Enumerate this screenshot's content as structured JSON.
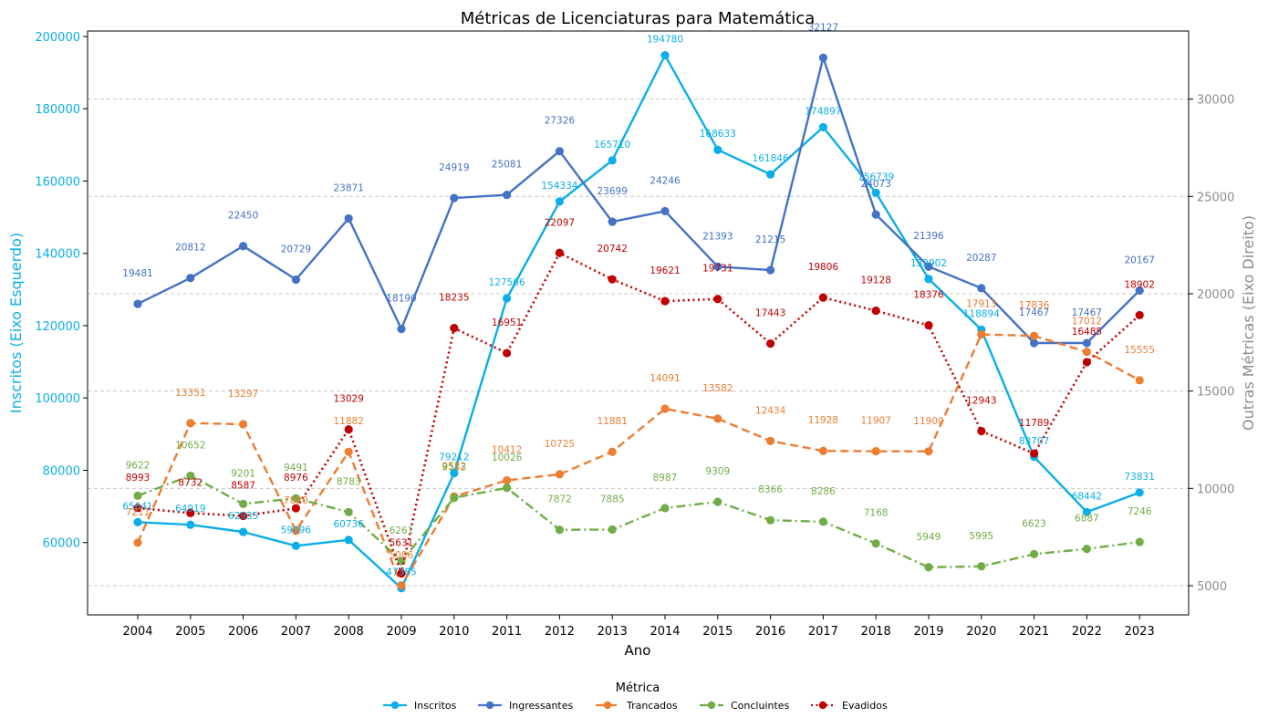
{
  "chart_data": {
    "type": "line",
    "title": "Métricas de Licenciaturas para Matemática",
    "xlabel": "Ano",
    "ylabel_left": "Inscritos (Eixo Esquerdo)",
    "ylabel_right": "Outras Métricas (Eixo Direito)",
    "left_color": "#0baee8",
    "right_color": "#8c8c8c",
    "ylim_left": [
      40000,
      201500
    ],
    "ylim_right": [
      3500,
      33500
    ],
    "yticks_left": [
      "60000",
      "80000",
      "100000",
      "120000",
      "140000",
      "160000",
      "180000",
      "200000"
    ],
    "yticks_right": [
      "5000",
      "10000",
      "15000",
      "20000",
      "25000",
      "30000"
    ],
    "grid": "horizontal dashed (right axis)",
    "legend_title": "Métrica",
    "legend_position": "bottom-center",
    "categories": [
      "2004",
      "2005",
      "2006",
      "2007",
      "2008",
      "2009",
      "2010",
      "2011",
      "2012",
      "2013",
      "2014",
      "2015",
      "2016",
      "2017",
      "2018",
      "2019",
      "2020",
      "2021",
      "2022",
      "2023"
    ],
    "series": [
      {
        "name": "Inscritos",
        "axis": "left",
        "color": "#0baee8",
        "style": "solid",
        "values": [
          65641,
          64919,
          62935,
          59096,
          60736,
          47385,
          79212,
          127566,
          154334,
          165710,
          194780,
          168633,
          161846,
          174897,
          156739,
          132902,
          118894,
          83707,
          68442,
          73831
        ]
      },
      {
        "name": "Ingressantes",
        "axis": "right",
        "color": "#4472c4",
        "style": "solid",
        "values": [
          19481,
          20812,
          22450,
          20729,
          23871,
          18190,
          24919,
          25081,
          27326,
          23699,
          24246,
          21393,
          21215,
          32127,
          24073,
          21396,
          20287,
          17467,
          17467,
          20167
        ]
      },
      {
        "name": "Trancados",
        "axis": "right",
        "color": "#ed7d31",
        "style": "dashed",
        "values": [
          7211,
          13351,
          13297,
          7820,
          11882,
          5006,
          9582,
          10412,
          10725,
          11881,
          14091,
          13582,
          12434,
          11928,
          11907,
          11900,
          17913,
          17836,
          17012,
          15555
        ]
      },
      {
        "name": "Concluintes",
        "axis": "right",
        "color": "#70ad47",
        "style": "dashdot",
        "values": [
          9622,
          10652,
          9201,
          9491,
          8783,
          6261,
          9513,
          10026,
          7872,
          7885,
          8987,
          9309,
          8366,
          8286,
          7168,
          5949,
          5995,
          6623,
          6887,
          7246
        ]
      },
      {
        "name": "Evadidos",
        "axis": "right",
        "color": "#c00000",
        "style": "dotted",
        "values": [
          8993,
          8732,
          8587,
          8976,
          13029,
          5631,
          18235,
          16951,
          22097,
          20742,
          19621,
          19731,
          17443,
          19806,
          19128,
          18376,
          12943,
          11789,
          16485,
          18902
        ]
      }
    ]
  }
}
